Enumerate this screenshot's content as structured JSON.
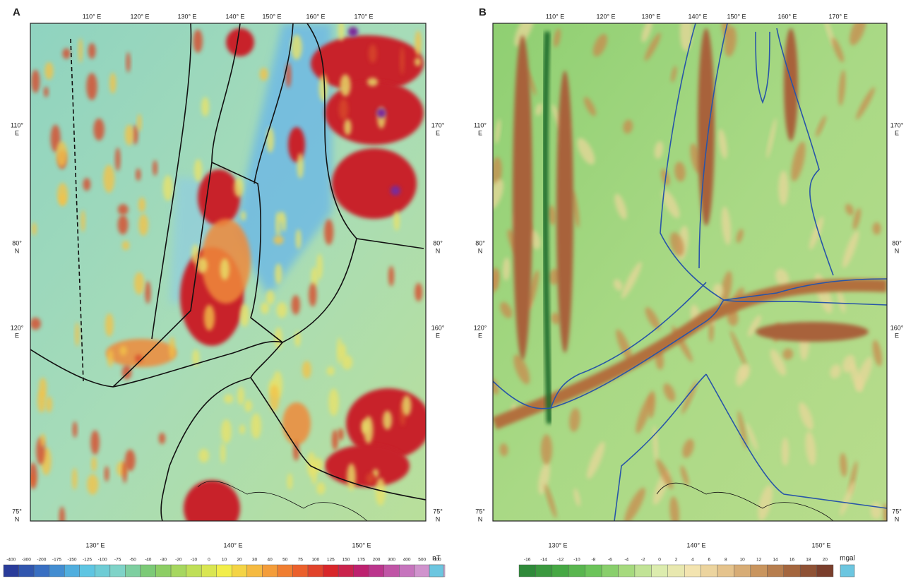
{
  "panels": [
    {
      "label": "A",
      "top": [
        "110° E",
        "120° E",
        "130° E",
        "140° E",
        "150° E",
        "160° E",
        "170° E"
      ],
      "bottom": [
        "130° E",
        "140° E",
        "150° E"
      ],
      "left": [
        {
          "l1": "110°",
          "l2": "E"
        },
        {
          "l1": "80°",
          "l2": "N"
        },
        {
          "l1": "120°",
          "l2": "E"
        },
        {
          "l1": "75°",
          "l2": "N"
        }
      ],
      "right": [
        {
          "l1": "170°",
          "l2": "E"
        },
        {
          "l1": "80°",
          "l2": "N"
        },
        {
          "l1": "160°",
          "l2": "E"
        },
        {
          "l1": "75°",
          "l2": "N"
        }
      ],
      "colorbar": {
        "ticks": [
          -400,
          -300,
          -200,
          -175,
          -150,
          -125,
          -100,
          -75,
          -50,
          -40,
          -30,
          -20,
          -10,
          0,
          10,
          20,
          30,
          40,
          50,
          75,
          100,
          125,
          150,
          175,
          200,
          300,
          400,
          500,
          600
        ],
        "unit": "nT",
        "color_stops": [
          "#2a3c9a",
          "#3b78c9",
          "#58c3e6",
          "#7fd3c8",
          "#7cc96a",
          "#b7dc5a",
          "#f2ee4a",
          "#f6b13f",
          "#ee6a2c",
          "#d8262a",
          "#b8207a",
          "#c36ab8",
          "#d9b2dd"
        ]
      }
    },
    {
      "label": "B",
      "top": [
        "110° E",
        "120° E",
        "130° E",
        "140° E",
        "150° E",
        "160° E",
        "170° E"
      ],
      "bottom": [
        "130° E",
        "140° E",
        "150° E"
      ],
      "left": [
        {
          "l1": "110°",
          "l2": "E"
        },
        {
          "l1": "80°",
          "l2": "N"
        },
        {
          "l1": "120°",
          "l2": "E"
        },
        {
          "l1": "75°",
          "l2": "N"
        }
      ],
      "right": [
        {
          "l1": "170°",
          "l2": "E"
        },
        {
          "l1": "80°",
          "l2": "N"
        },
        {
          "l1": "160°",
          "l2": "E"
        },
        {
          "l1": "75°",
          "l2": "N"
        }
      ],
      "colorbar": {
        "ticks": [
          -16,
          -14,
          -12,
          -10,
          -8,
          -6,
          -4,
          -2,
          0,
          2,
          4,
          6,
          8,
          10,
          12,
          14,
          16,
          18,
          20
        ],
        "unit": "mgal",
        "color_stops": [
          "#2f8a3a",
          "#46a844",
          "#6cc45a",
          "#a6da7e",
          "#dcecae",
          "#f3e4b0",
          "#e5c38c",
          "#c9955e",
          "#a4663e",
          "#7a3e2c"
        ]
      }
    }
  ]
}
